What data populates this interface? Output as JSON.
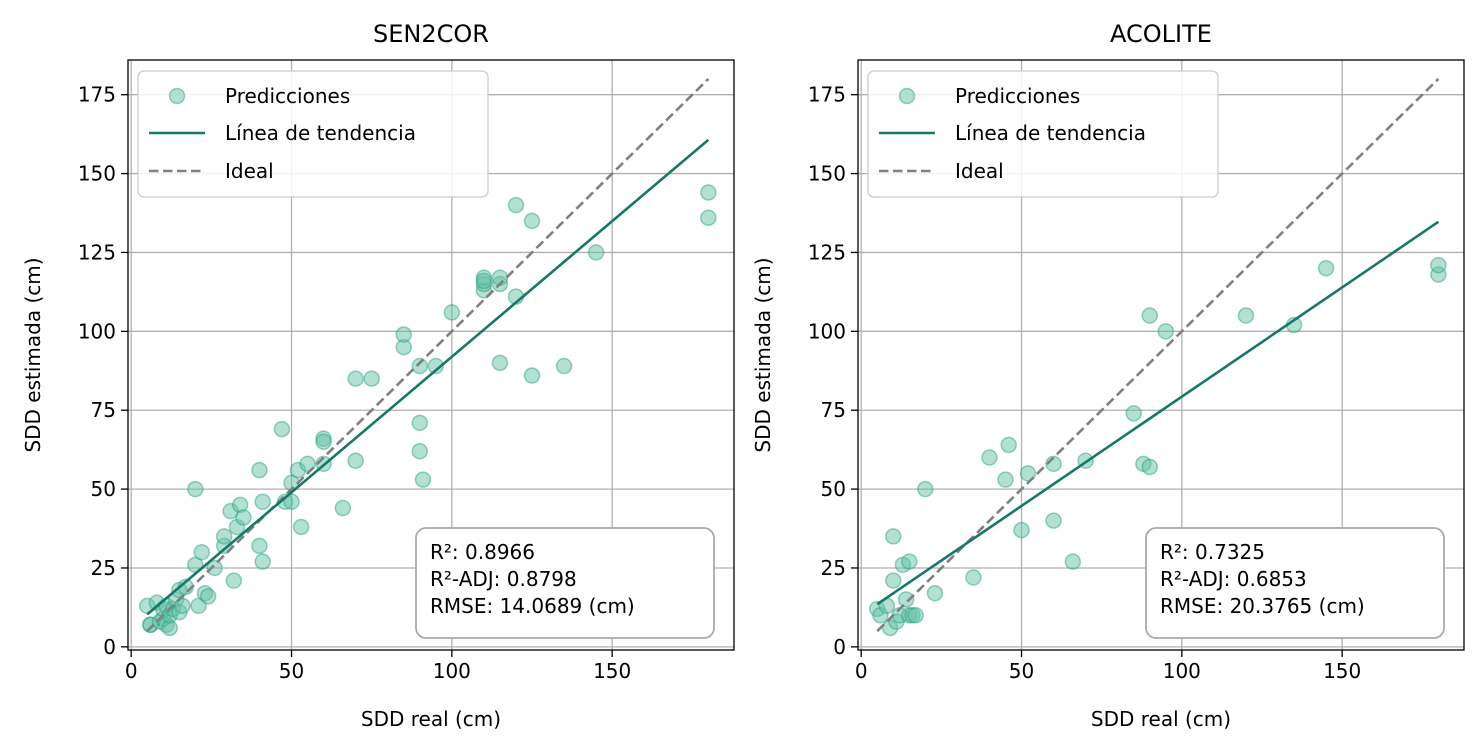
{
  "chart_data": [
    {
      "type": "scatter",
      "title": "SEN2COR",
      "xlabel": "SDD real (cm)",
      "ylabel": "SDD estimada (cm)",
      "xlim": [
        -1,
        188
      ],
      "ylim": [
        -1,
        186
      ],
      "xticks": [
        0,
        50,
        100,
        150
      ],
      "yticks": [
        0,
        25,
        50,
        75,
        100,
        125,
        150,
        175
      ],
      "grid": true,
      "legend_position": "top-left",
      "series": [
        {
          "name": "Predicciones",
          "kind": "scatter",
          "x": [
            5,
            6,
            6,
            8,
            9,
            10,
            10,
            11,
            11,
            12,
            12,
            13,
            14,
            15,
            15,
            16,
            17,
            20,
            20,
            21,
            22,
            23,
            24,
            26,
            29,
            29,
            31,
            32,
            33,
            34,
            35,
            40,
            40,
            41,
            41,
            47,
            48,
            50,
            50,
            52,
            53,
            55,
            60,
            60,
            60,
            66,
            70,
            70,
            75,
            85,
            85,
            90,
            90,
            90,
            91,
            95,
            100,
            110,
            110,
            110,
            110,
            115,
            115,
            115,
            120,
            120,
            125,
            125,
            135,
            145,
            180,
            180
          ],
          "y": [
            13,
            7,
            7,
            14,
            8,
            9,
            12,
            7,
            13,
            6,
            10,
            12,
            15,
            11,
            18,
            13,
            19,
            26,
            50,
            13,
            30,
            17,
            16,
            25,
            32,
            35,
            43,
            21,
            38,
            45,
            41,
            56,
            32,
            27,
            46,
            69,
            46,
            52,
            46,
            56,
            38,
            58,
            58,
            66,
            65,
            44,
            85,
            59,
            85,
            95,
            99,
            71,
            89,
            62,
            53,
            89,
            106,
            113,
            115,
            117,
            116,
            115,
            117,
            90,
            140,
            111,
            135,
            86,
            89,
            125,
            136,
            144
          ]
        },
        {
          "name": "Línea de tendencia",
          "kind": "line",
          "x": [
            5,
            180
          ],
          "y": [
            10.3,
            160.7
          ]
        },
        {
          "name": "Ideal",
          "kind": "dashed",
          "x": [
            5,
            180
          ],
          "y": [
            5,
            180
          ]
        }
      ],
      "stats": [
        "R²: 0.8966",
        "R²-ADJ: 0.8798",
        "RMSE: 14.0689 (cm)"
      ],
      "colors": {
        "points": "#66c2a5",
        "points_edge": "#1b9e77",
        "trend": "#16786a",
        "ideal": "#808080"
      }
    },
    {
      "type": "scatter",
      "title": "ACOLITE",
      "xlabel": "SDD real (cm)",
      "ylabel": "SDD estimada (cm)",
      "xlim": [
        -1,
        188
      ],
      "ylim": [
        -1,
        186
      ],
      "xticks": [
        0,
        50,
        100,
        150
      ],
      "yticks": [
        0,
        25,
        50,
        75,
        100,
        125,
        150,
        175
      ],
      "grid": true,
      "legend_position": "top-left",
      "series": [
        {
          "name": "Predicciones",
          "kind": "scatter",
          "x": [
            5,
            6,
            8,
            9,
            10,
            10,
            11,
            12,
            13,
            14,
            15,
            15,
            16,
            17,
            20,
            23,
            35,
            40,
            45,
            46,
            50,
            52,
            60,
            60,
            66,
            70,
            85,
            88,
            90,
            90,
            95,
            120,
            135,
            145,
            180,
            180
          ],
          "y": [
            12,
            10,
            13,
            6,
            21,
            35,
            8,
            10,
            26,
            15,
            27,
            10,
            10,
            10,
            50,
            17,
            22,
            60,
            53,
            64,
            37,
            55,
            58,
            40,
            27,
            59,
            74,
            58,
            105,
            57,
            100,
            105,
            102,
            120,
            118,
            121
          ]
        },
        {
          "name": "Línea de tendencia",
          "kind": "line",
          "x": [
            5,
            180
          ],
          "y": [
            13.5,
            134.7
          ]
        },
        {
          "name": "Ideal",
          "kind": "dashed",
          "x": [
            5,
            180
          ],
          "y": [
            5,
            180
          ]
        }
      ],
      "stats": [
        "R²: 0.7325",
        "R²-ADJ: 0.6853",
        "RMSE: 20.3765 (cm)"
      ],
      "colors": {
        "points": "#66c2a5",
        "points_edge": "#1b9e77",
        "trend": "#16786a",
        "ideal": "#808080"
      }
    }
  ]
}
